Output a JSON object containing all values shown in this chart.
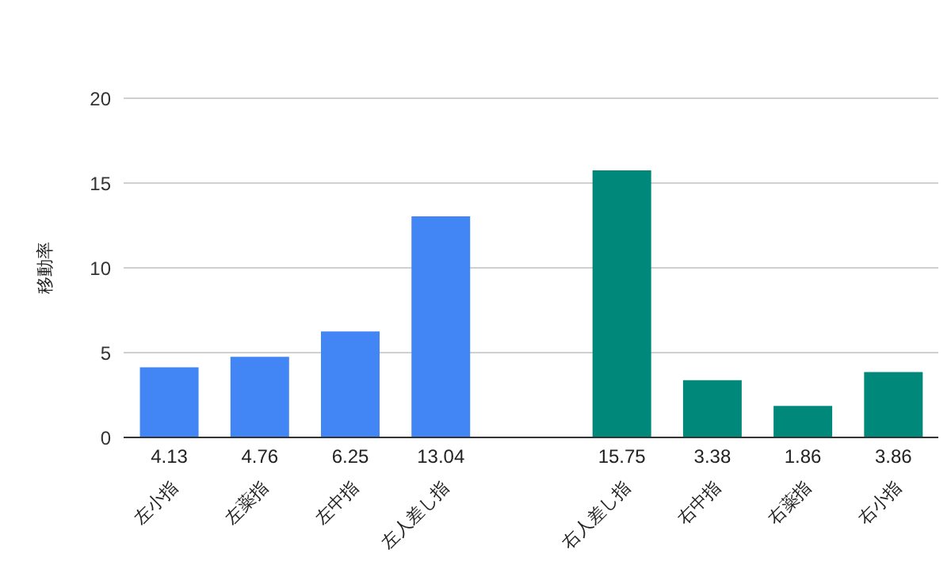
{
  "chart_data": {
    "type": "bar",
    "ylabel": "移動率",
    "categories": [
      "左小指",
      "左薬指",
      "左中指",
      "左人差し指",
      null,
      "右人差し指",
      "右中指",
      "右薬指",
      "右小指"
    ],
    "values": [
      4.13,
      4.76,
      6.25,
      13.04,
      null,
      15.75,
      3.38,
      1.86,
      3.86
    ],
    "colors": [
      "#4285f4",
      "#4285f4",
      "#4285f4",
      "#4285f4",
      "#4285f4",
      "#00897b",
      "#00897b",
      "#00897b",
      "#00897b"
    ],
    "ylim": [
      0,
      20
    ],
    "yticks": [
      0,
      5,
      10,
      15,
      20
    ],
    "grid": "y",
    "data_labels": true
  }
}
